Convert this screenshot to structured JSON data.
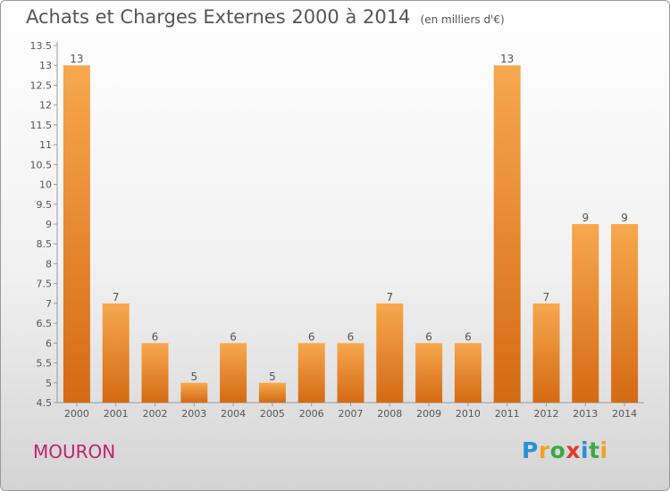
{
  "title": "Achats et Charges Externes 2000 à 2014",
  "unit": "(en milliers d'€)",
  "commune": "MOURON",
  "logo": {
    "text": "Proxiti",
    "letters": [
      {
        "ch": "P",
        "color": "#2a8fd6"
      },
      {
        "ch": "r",
        "color": "#f2a120"
      },
      {
        "ch": "o",
        "color": "#3aa84a"
      },
      {
        "ch": "x",
        "color": "#e23a2c"
      },
      {
        "ch": "i",
        "color": "#2a8fd6"
      },
      {
        "ch": "t",
        "color": "#3aa84a"
      },
      {
        "ch": "i",
        "color": "#f2a120"
      }
    ]
  },
  "colors": {
    "bar_light": "#f7a84e",
    "bar_dark": "#d46a14",
    "text": "#555555",
    "axis": "#999999"
  },
  "chart_data": {
    "type": "bar",
    "title": "Achats et Charges Externes 2000 à 2014",
    "subtitle": "(en milliers d'€)",
    "xlabel": "",
    "ylabel": "",
    "categories": [
      "2000",
      "2001",
      "2002",
      "2003",
      "2004",
      "2005",
      "2006",
      "2007",
      "2008",
      "2009",
      "2010",
      "2011",
      "2012",
      "2013",
      "2014"
    ],
    "values": [
      13,
      7,
      6,
      5,
      6,
      5,
      6,
      6,
      7,
      6,
      6,
      13,
      7,
      9,
      9
    ],
    "ylim": [
      4.5,
      13.5
    ],
    "yticks": [
      "4.5",
      "5",
      "5.5",
      "6",
      "6.5",
      "7",
      "7.5",
      "8",
      "8.5",
      "9",
      "9.5",
      "10",
      "10.5",
      "11",
      "11.5",
      "12",
      "12.5",
      "13",
      "13.5"
    ],
    "grid": false,
    "legend": "none"
  }
}
